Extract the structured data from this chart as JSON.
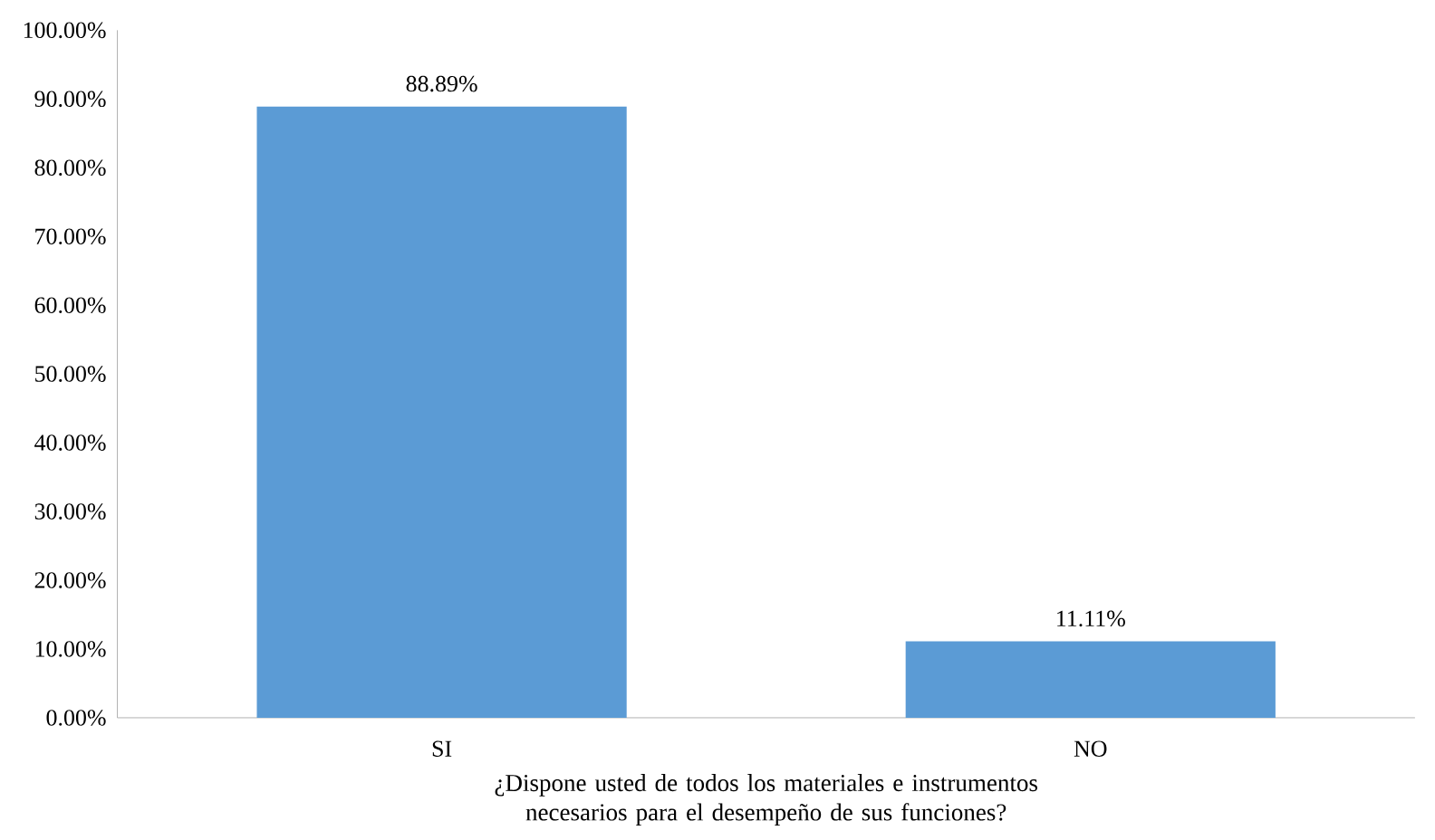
{
  "chart_data": {
    "type": "bar",
    "categories": [
      "SI",
      "NO"
    ],
    "values": [
      88.89,
      11.11
    ],
    "value_labels": [
      "88.89%",
      "11.11%"
    ],
    "color": "#5b9bd5",
    "xlabel": "¿Dispone usted de todos los materiales e instrumentos necesarios para el desempeño de sus funciones?",
    "ylim": [
      0,
      100
    ],
    "yticks": [
      {
        "value": 0,
        "label": "0.00%"
      },
      {
        "value": 10,
        "label": "10.00%"
      },
      {
        "value": 20,
        "label": "20.00%"
      },
      {
        "value": 30,
        "label": "30.00%"
      },
      {
        "value": 40,
        "label": "40.00%"
      },
      {
        "value": 50,
        "label": "50.00%"
      },
      {
        "value": 60,
        "label": "60.00%"
      },
      {
        "value": 70,
        "label": "70.00%"
      },
      {
        "value": 80,
        "label": "80.00%"
      },
      {
        "value": 90,
        "label": "90.00%"
      },
      {
        "value": 100,
        "label": "100.00%"
      }
    ]
  }
}
